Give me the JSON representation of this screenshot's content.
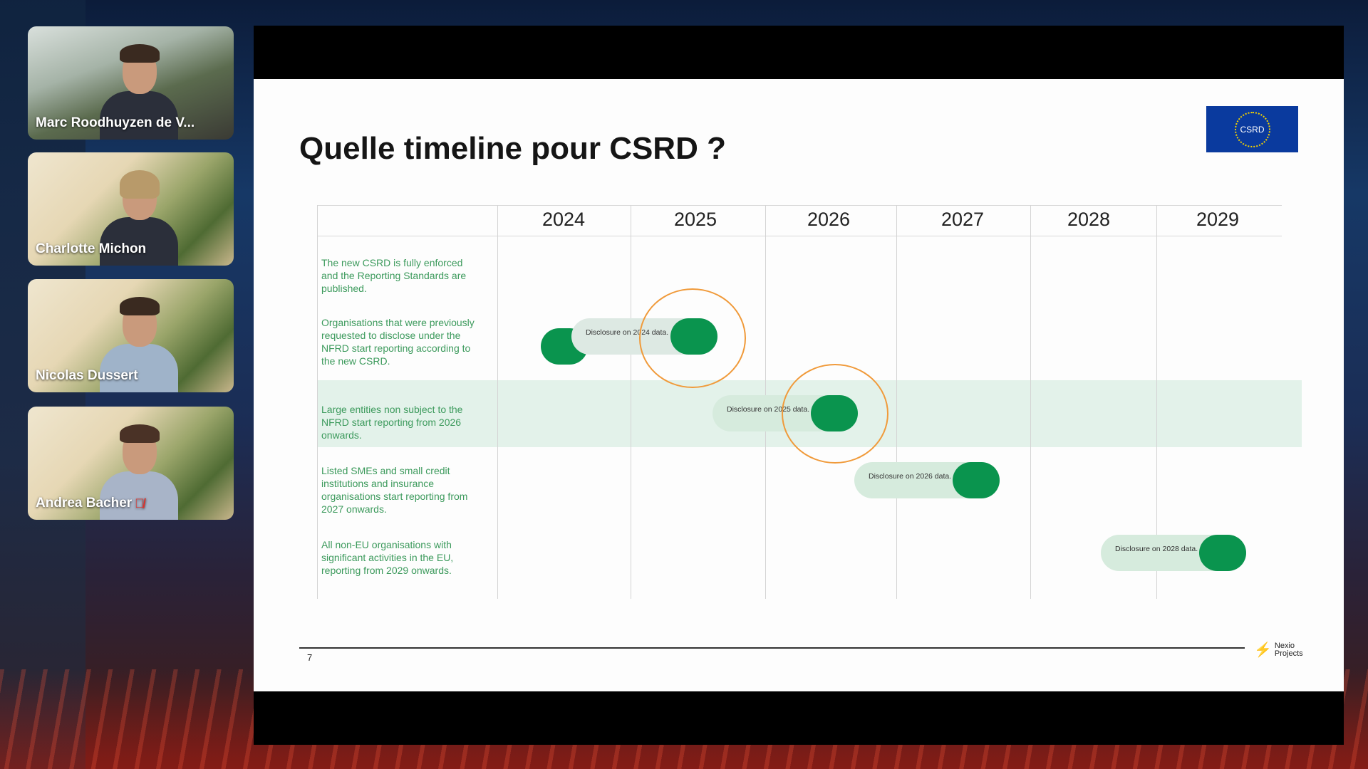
{
  "participants": [
    {
      "name": "Marc Roodhuyzen de V...",
      "muted": false
    },
    {
      "name": "Charlotte Michon",
      "muted": false
    },
    {
      "name": "Nicolas Dussert",
      "muted": false
    },
    {
      "name": "Andrea Bacher",
      "muted": true
    }
  ],
  "slide": {
    "title": "Quelle timeline pour CSRD ?",
    "logo_text": "CSRD",
    "years": [
      "2024",
      "2025",
      "2026",
      "2027",
      "2028",
      "2029"
    ],
    "rows": [
      {
        "text": "The new CSRD is fully enforced and the Reporting Standards are published.",
        "year": "2024",
        "label": ""
      },
      {
        "text": "Organisations that were previously requested to disclose under the NFRD start reporting according to the new CSRD.",
        "year": "2025",
        "label": "Disclosure on 2024 data.",
        "circled": true
      },
      {
        "text": "Large entities non subject to the NFRD start reporting from 2026 onwards.",
        "year": "2026",
        "label": "Disclosure on 2025 data.",
        "circled": true,
        "highlighted": true
      },
      {
        "text": "Listed SMEs and small credit institutions and insurance organisations start reporting from 2027 onwards.",
        "year": "2027",
        "label": "Disclosure on 2026 data."
      },
      {
        "text": "All non-EU organisations with significant activities in the EU, reporting from 2029 onwards.",
        "year": "2029",
        "label": "Disclosure on 2028 data."
      }
    ],
    "page_number": "7",
    "brand_line1": "Nexio",
    "brand_line2": "Projects",
    "colors": {
      "milestone": "#0a944e",
      "row_text": "#3c9a5c",
      "annotation": "#f09a3a",
      "flag": "#0a3a9e"
    }
  }
}
